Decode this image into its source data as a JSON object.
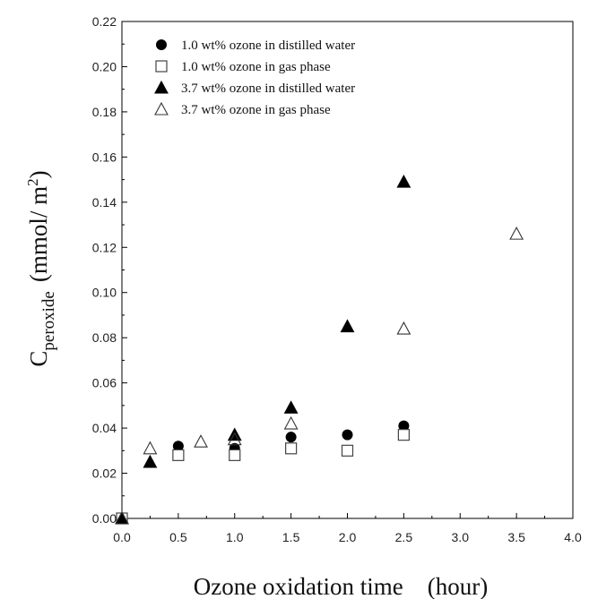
{
  "chart_data": {
    "type": "scatter",
    "title": "",
    "xlabel": "Ozone oxidation time    (hour)",
    "ylabel": {
      "main": "C",
      "subscript": "peroxide",
      "units_open": "(mmol/ m",
      "units_sup": "2",
      "units_close": ")"
    },
    "xlim": [
      0,
      4.0
    ],
    "ylim": [
      0,
      0.22
    ],
    "x_ticks": [
      "0.0",
      "0.5",
      "1.0",
      "1.5",
      "2.0",
      "2.5",
      "3.0",
      "3.5",
      "4.0"
    ],
    "y_ticks": [
      "0.00",
      "0.02",
      "0.04",
      "0.06",
      "0.08",
      "0.10",
      "0.12",
      "0.14",
      "0.16",
      "0.18",
      "0.20",
      "0.22"
    ],
    "grid": false,
    "legend_position": "top-left",
    "series": [
      {
        "name": "1.0 wt% ozone in distilled water",
        "marker": "circle-filled",
        "points": [
          [
            0,
            0
          ],
          [
            0.5,
            0.032
          ],
          [
            1.0,
            0.031
          ],
          [
            1.5,
            0.036
          ],
          [
            2.0,
            0.037
          ],
          [
            2.5,
            0.041
          ]
        ]
      },
      {
        "name": "1.0 wt% ozone in gas phase",
        "marker": "square-open",
        "points": [
          [
            0,
            0
          ],
          [
            0.5,
            0.028
          ],
          [
            1.0,
            0.028
          ],
          [
            1.5,
            0.031
          ],
          [
            2.0,
            0.03
          ],
          [
            2.5,
            0.037
          ]
        ]
      },
      {
        "name": "3.7 wt% ozone in distilled water",
        "marker": "triangle-filled",
        "points": [
          [
            0,
            0
          ],
          [
            0.25,
            0.025
          ],
          [
            1.0,
            0.037
          ],
          [
            1.5,
            0.049
          ],
          [
            2.0,
            0.085
          ],
          [
            2.5,
            0.149
          ]
        ]
      },
      {
        "name": "3.7 wt% ozone in gas phase",
        "marker": "triangle-open",
        "points": [
          [
            0,
            0
          ],
          [
            0.25,
            0.031
          ],
          [
            0.7,
            0.034
          ],
          [
            1.0,
            0.035
          ],
          [
            1.5,
            0.042
          ],
          [
            2.5,
            0.084
          ],
          [
            3.5,
            0.126
          ]
        ]
      }
    ]
  }
}
